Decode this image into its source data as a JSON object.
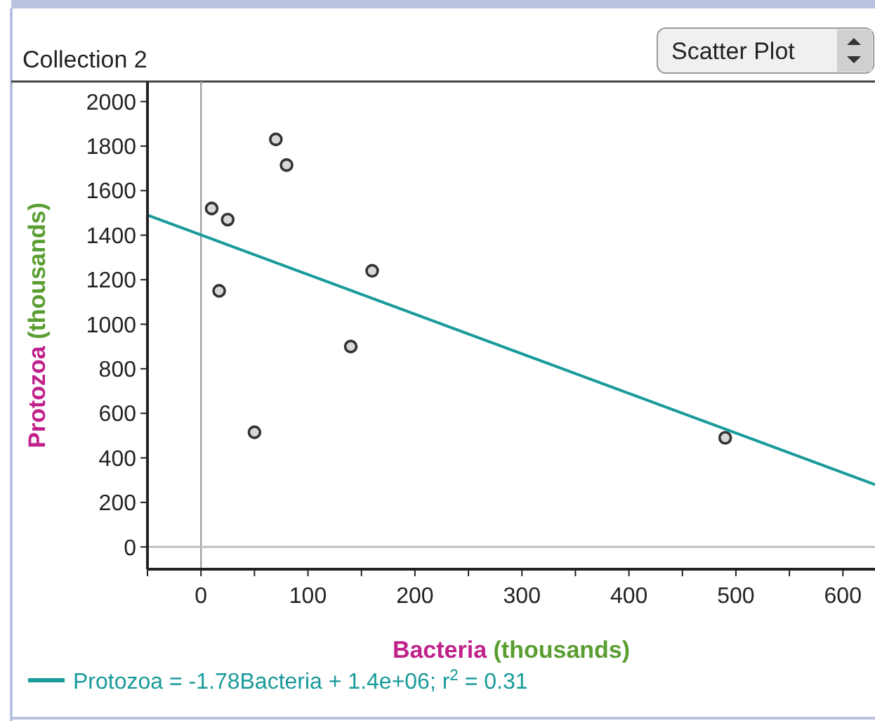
{
  "chart_data": {
    "type": "scatter",
    "title": "Collection 2",
    "xlabel": "Bacteria (thousands)",
    "ylabel": "Protozoa (thousands)",
    "annotations": [
      "Scatter Plot"
    ],
    "xlim": [
      -50,
      630
    ],
    "ylim": [
      -100,
      2090
    ],
    "xticks": [
      {
        "value": -50,
        "label": null
      },
      0,
      {
        "value": 50,
        "label": null
      },
      100,
      {
        "value": 150,
        "label": null
      },
      200,
      {
        "value": 250,
        "label": null
      },
      300,
      {
        "value": 350,
        "label": null
      },
      400,
      {
        "value": 450,
        "label": null
      },
      500,
      {
        "value": 550,
        "label": null
      },
      600
    ],
    "yticks": [
      0,
      200,
      400,
      600,
      800,
      1000,
      1200,
      1400,
      1600,
      1800,
      2000
    ],
    "ref_lines": [
      {
        "axis": "x",
        "value": 0,
        "color": "#a0a0a0"
      },
      {
        "axis": "y",
        "value": 0,
        "color": "#c0c0c0"
      }
    ],
    "legend": "bottom",
    "grid": false,
    "series": [
      {
        "marker": "circle",
        "color": "#333333",
        "x": [
          10,
          25,
          17,
          50,
          70,
          80,
          140,
          160,
          490
        ],
        "values": [
          1520,
          1470,
          1150,
          515,
          1830,
          1715,
          900,
          1240,
          490
        ]
      },
      {
        "type": "line",
        "marker": "none",
        "name": "Protozoa = -1.78Bacteria + 1.4e+06; r$^{2}$ = 0.31",
        "color": "#1a9a9a",
        "x": [
          -50,
          630
        ],
        "values": [
          1490,
          280
        ]
      }
    ]
  }
}
